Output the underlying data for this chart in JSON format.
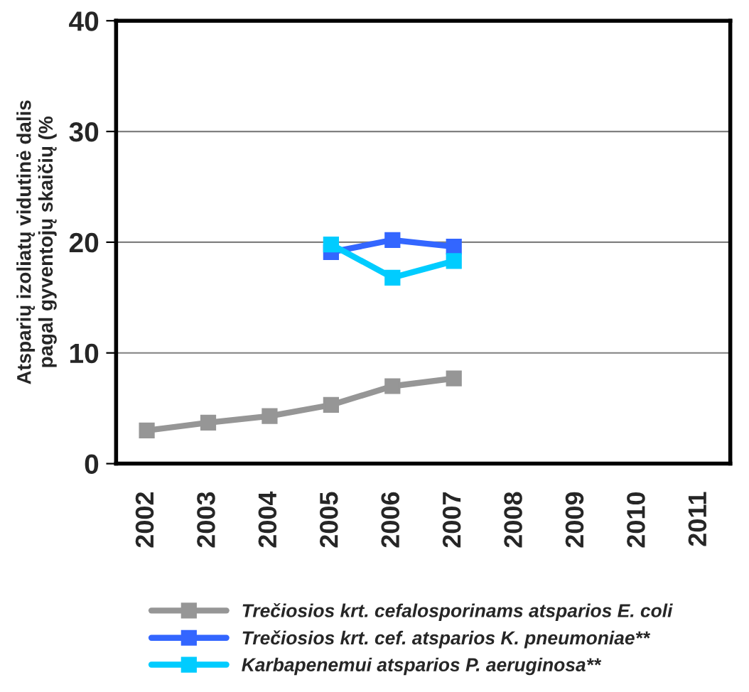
{
  "chart_data": {
    "type": "line",
    "ylabel": "Atsparių izoliatų vidutinė dalis\npagal gyventojų skaičių (%",
    "categories": [
      "2002",
      "2003",
      "2004",
      "2005",
      "2006",
      "2007",
      "2008",
      "2009",
      "2010",
      "2011"
    ],
    "series": [
      {
        "name": "Trečiosios krt. cefalosporinams atsparios E. coli",
        "color": "#969696",
        "values": [
          3.0,
          3.7,
          4.3,
          5.3,
          7.0,
          7.7,
          null,
          null,
          null,
          null
        ]
      },
      {
        "name": "Trečiosios krt. cef. atsparios K. pneumoniae**",
        "color": "#3366ff",
        "values": [
          null,
          null,
          null,
          19.1,
          20.2,
          19.6,
          null,
          null,
          null,
          null
        ]
      },
      {
        "name": "Karbapenemui atsparios P. aeruginosa**",
        "color": "#00ccff",
        "values": [
          null,
          null,
          null,
          19.8,
          16.8,
          18.3,
          null,
          null,
          null,
          null
        ]
      }
    ],
    "ylim": [
      0,
      40
    ],
    "yticks": [
      0,
      10,
      20,
      30,
      40
    ],
    "grid": "y",
    "legend": "bottom",
    "marker": "square",
    "line_style": "solid"
  }
}
